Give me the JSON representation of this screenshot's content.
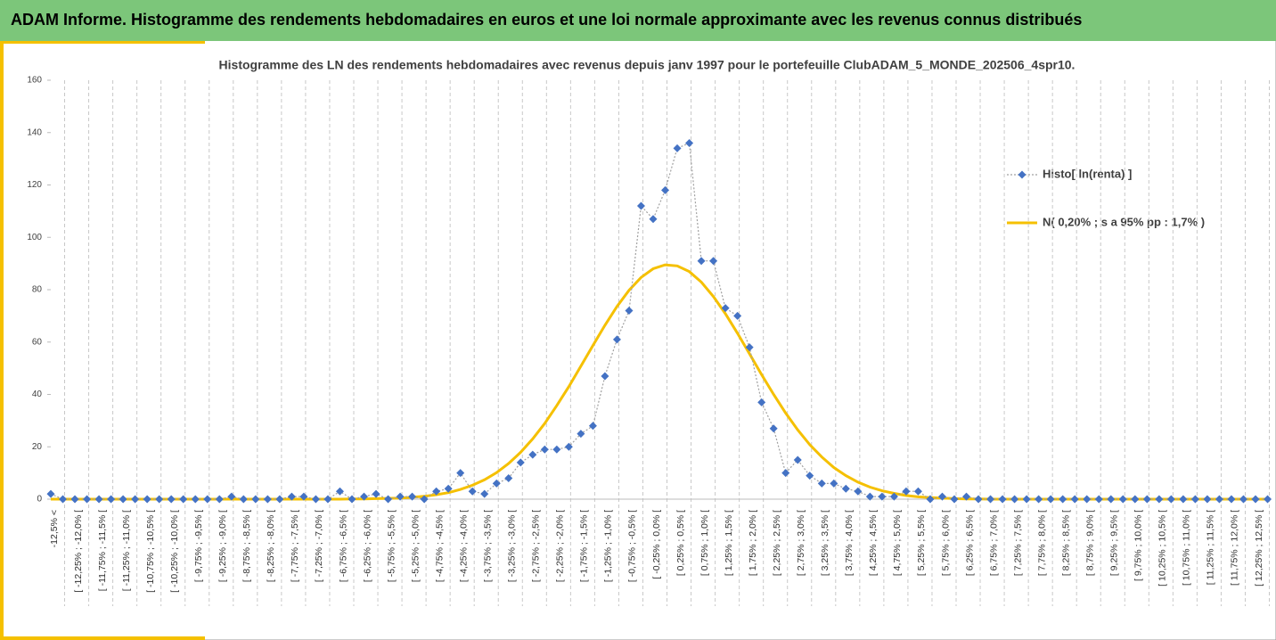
{
  "header": {
    "title": "ADAM Informe. Histogramme des rendements hebdomadaires en euros et une loi normale approximante avec les revenus connus distribués"
  },
  "chart_data": {
    "type": "line",
    "title": "Histogramme des LN des rendements hebdomadaires avec revenus depuis janv 1997 pour le portefeuille ClubADAM_5_MONDE_202506_4spr10.",
    "categories": [
      "-12,5% <",
      null,
      "[ -12,25% ; -12,0% [",
      null,
      "[ -11,75% ; -11,5% [",
      null,
      "[ -11,25% ; -11,0% [",
      null,
      "[ -10,75% ; -10,5% [",
      null,
      "[ -10,25% ; -10,0% [",
      null,
      "[ -9,75% ; -9,5% [",
      null,
      "[ -9,25% ; -9,0% [",
      null,
      "[ -8,75% ; -8,5% [",
      null,
      "[ -8,25% ; -8,0% [",
      null,
      "[ -7,75% ; -7,5% [",
      null,
      "[ -7,25% ; -7,0% [",
      null,
      "[ -6,75% ; -6,5% [",
      null,
      "[ -6,25% ; -6,0% [",
      null,
      "[ -5,75% ; -5,5% [",
      null,
      "[ -5,25% ; -5,0% [",
      null,
      "[ -4,75% ; -4,5% [",
      null,
      "[ -4,25% ; -4,0% [",
      null,
      "[ -3,75% ; -3,5% [",
      null,
      "[ -3,25% ; -3,0% [",
      null,
      "[ -2,75% ; -2,5% [",
      null,
      "[ -2,25% ; -2,0% [",
      null,
      "[ -1,75% ; -1,5% [",
      null,
      "[ -1,25% ; -1,0% [",
      null,
      "[ -0,75% ; -0,5% [",
      null,
      "[ -0,25% ; 0,0% [",
      null,
      "[ 0,25% ; 0,5% [",
      null,
      "[ 0,75% ; 1,0% [",
      null,
      "[ 1,25% ; 1,5% [",
      null,
      "[ 1,75% ; 2,0% [",
      null,
      "[ 2,25% ; 2,5% [",
      null,
      "[ 2,75% ; 3,0% [",
      null,
      "[ 3,25% ; 3,5% [",
      null,
      "[ 3,75% ; 4,0% [",
      null,
      "[ 4,25% ; 4,5% [",
      null,
      "[ 4,75% ; 5,0% [",
      null,
      "[ 5,25% ; 5,5% [",
      null,
      "[ 5,75% ; 6,0% [",
      null,
      "[ 6,25% ; 6,5% [",
      null,
      "[ 6,75% ; 7,0% [",
      null,
      "[ 7,25% ; 7,5% [",
      null,
      "[ 7,75% ; 8,0% [",
      null,
      "[ 8,25% ; 8,5% [",
      null,
      "[ 8,75% ; 9,0% [",
      null,
      "[ 9,25% ; 9,5% [",
      null,
      "[ 9,75% ; 10,0% [",
      null,
      "[ 10,25% ; 10,5% [",
      null,
      "[ 10,75% ; 11,0% [",
      null,
      "[ 11,25% ; 11,5% [",
      null,
      "[ 11,75% ; 12,0% [",
      null,
      "[ 12,25% ; 12,5% [",
      null
    ],
    "series": [
      {
        "name": "Histo[ ln(renta) ]",
        "color": "#4472c4",
        "markers": true,
        "values": [
          2,
          0,
          0,
          0,
          0,
          0,
          0,
          0,
          0,
          0,
          0,
          0,
          0,
          0,
          0,
          1,
          0,
          0,
          0,
          0,
          1,
          1,
          0,
          0,
          3,
          0,
          1,
          2,
          0,
          1,
          1,
          0,
          3,
          4,
          10,
          3,
          2,
          6,
          8,
          14,
          17,
          19,
          19,
          20,
          25,
          28,
          47,
          61,
          72,
          112,
          107,
          118,
          134,
          136,
          91,
          91,
          73,
          70,
          58,
          37,
          27,
          10,
          15,
          9,
          6,
          6,
          4,
          3,
          1,
          1,
          1,
          3,
          3,
          0,
          1,
          0,
          1,
          0,
          0,
          0,
          0,
          0,
          0,
          0,
          0,
          0,
          0,
          0,
          0,
          0,
          0,
          0,
          0,
          0,
          0,
          0,
          0,
          0,
          0,
          0,
          0,
          0
        ]
      },
      {
        "name": "N( 0,20% ; s a 95% pp : 1,7% )",
        "color": "#f5c000",
        "markers": false,
        "values": [
          0,
          0,
          0,
          0,
          0,
          0,
          0,
          0,
          0,
          0,
          0,
          0,
          0,
          0,
          0,
          0,
          0,
          0,
          0,
          0,
          0,
          0,
          0,
          0,
          0,
          0.1,
          0.1,
          0.2,
          0.3,
          0.4,
          0.7,
          1.1,
          1.7,
          2.5,
          3.7,
          5.3,
          7.4,
          10.1,
          13.6,
          17.9,
          23.0,
          28.9,
          35.7,
          43.0,
          50.8,
          58.7,
          66.4,
          73.6,
          79.8,
          84.7,
          88.0,
          89.5,
          89.1,
          86.9,
          82.9,
          77.4,
          70.8,
          63.4,
          55.5,
          47.6,
          40.0,
          32.9,
          26.5,
          20.8,
          16.1,
          12.1,
          9.0,
          6.5,
          4.6,
          3.2,
          2.2,
          1.4,
          0.9,
          0.6,
          0.4,
          0.2,
          0.1,
          0.1,
          0,
          0,
          0,
          0,
          0,
          0,
          0,
          0,
          0,
          0,
          0,
          0,
          0,
          0,
          0,
          0,
          0,
          0,
          0,
          0,
          0,
          0,
          0,
          0
        ]
      }
    ],
    "ylim": [
      0,
      160
    ],
    "yticks": [
      0,
      20,
      40,
      60,
      80,
      100,
      120,
      140,
      160
    ],
    "grid": true,
    "legend": "right"
  }
}
